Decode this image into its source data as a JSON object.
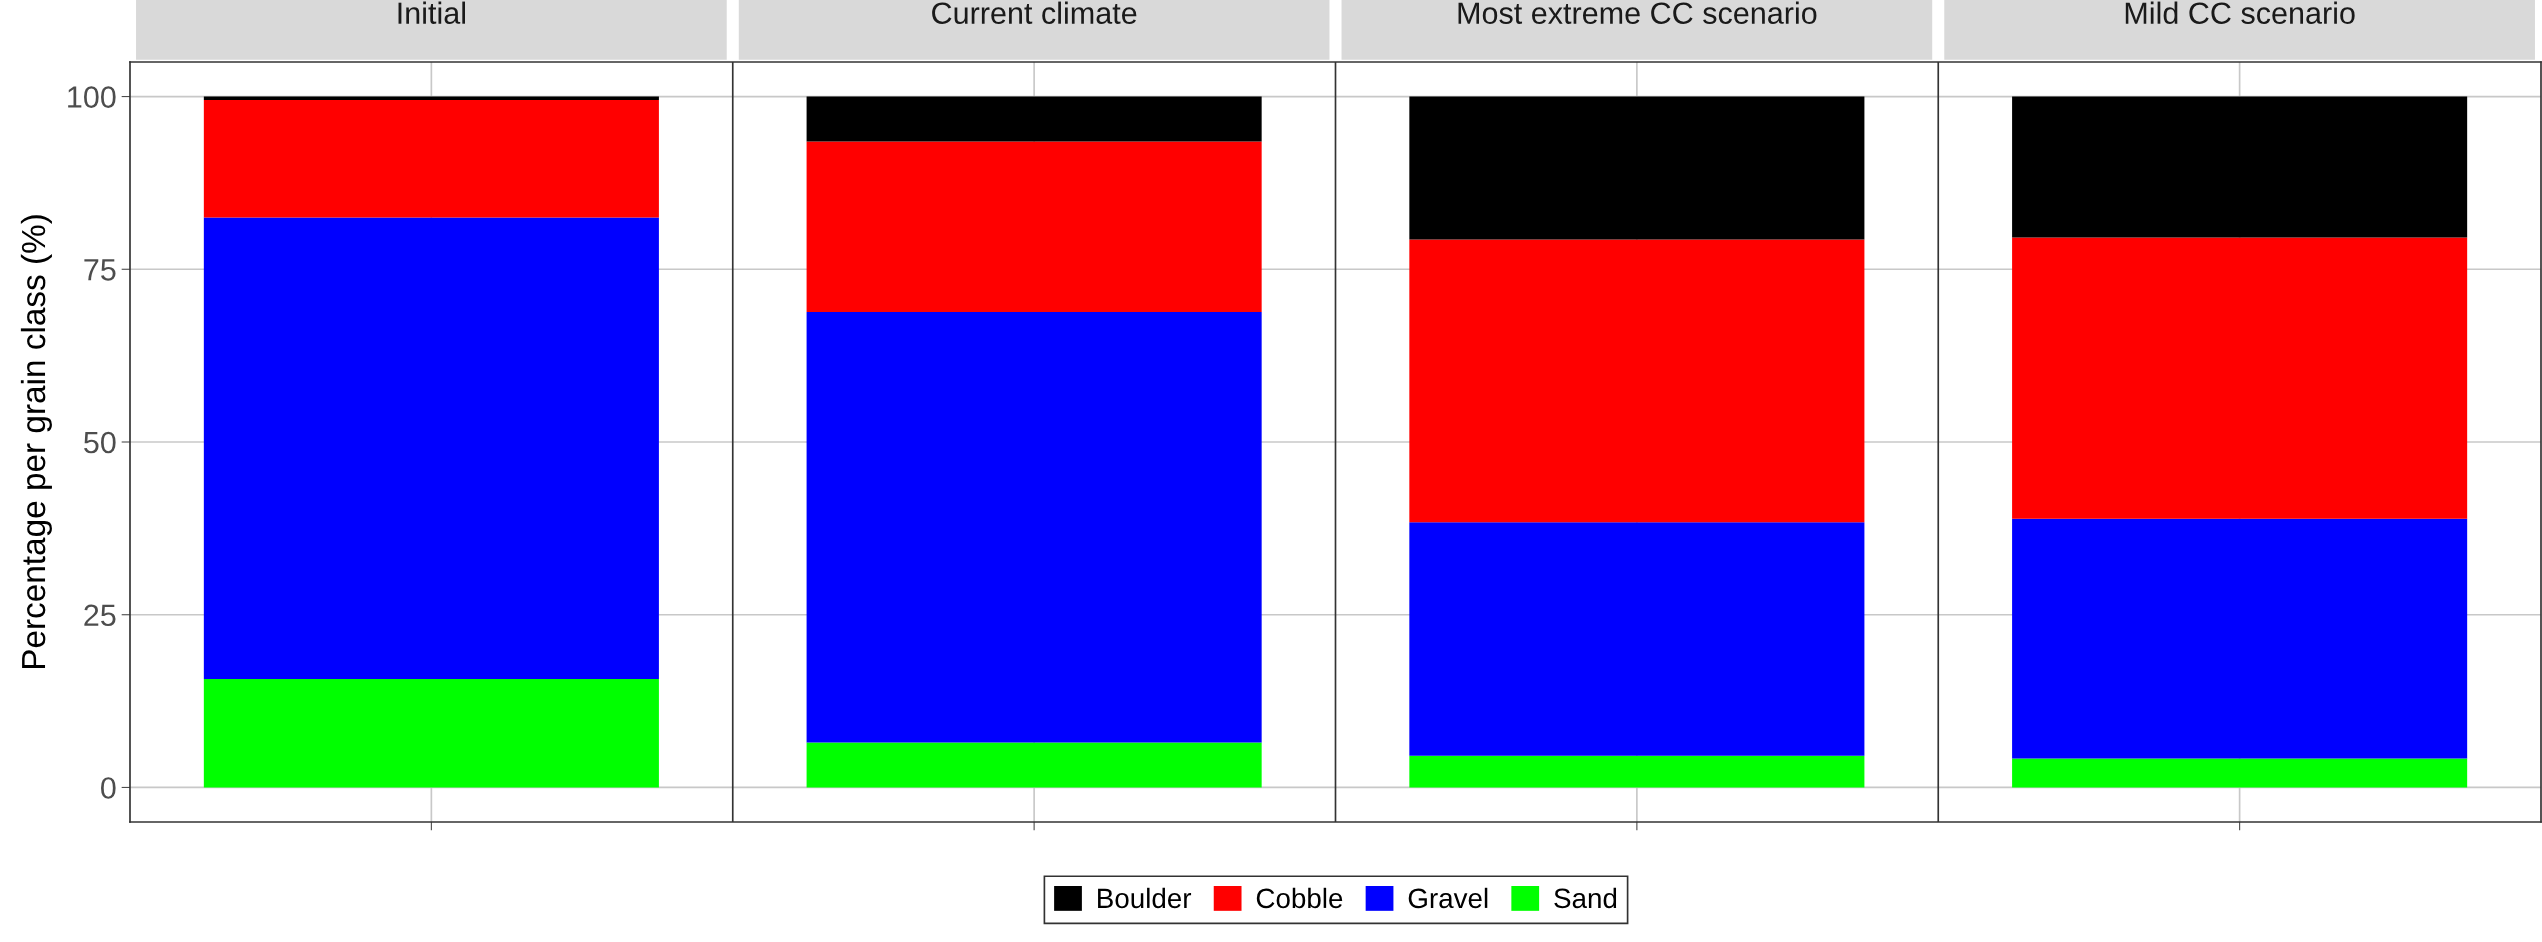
{
  "chart_data": {
    "type": "bar",
    "ylabel": "Percentage per grain class (%)",
    "categories": [
      "Initial",
      "Current climate",
      "Most extreme CC scenario",
      "Mild CC scenario"
    ],
    "stacked": true,
    "ylim": [
      -5,
      105
    ],
    "yticks": [
      0,
      25,
      50,
      75,
      100
    ],
    "grid": true,
    "legend": "bottom",
    "series": [
      {
        "name": "Sand",
        "color": "#00ff00",
        "values": [
          15.7,
          6.5,
          4.6,
          4.2
        ]
      },
      {
        "name": "Gravel",
        "color": "#0000ff",
        "values": [
          66.8,
          62.3,
          33.8,
          34.7
        ]
      },
      {
        "name": "Cobble",
        "color": "#ff0000",
        "values": [
          17.0,
          24.7,
          40.9,
          40.7
        ]
      },
      {
        "name": "Boulder",
        "color": "#000000",
        "values": [
          0.5,
          6.5,
          20.7,
          20.4
        ]
      }
    ]
  }
}
